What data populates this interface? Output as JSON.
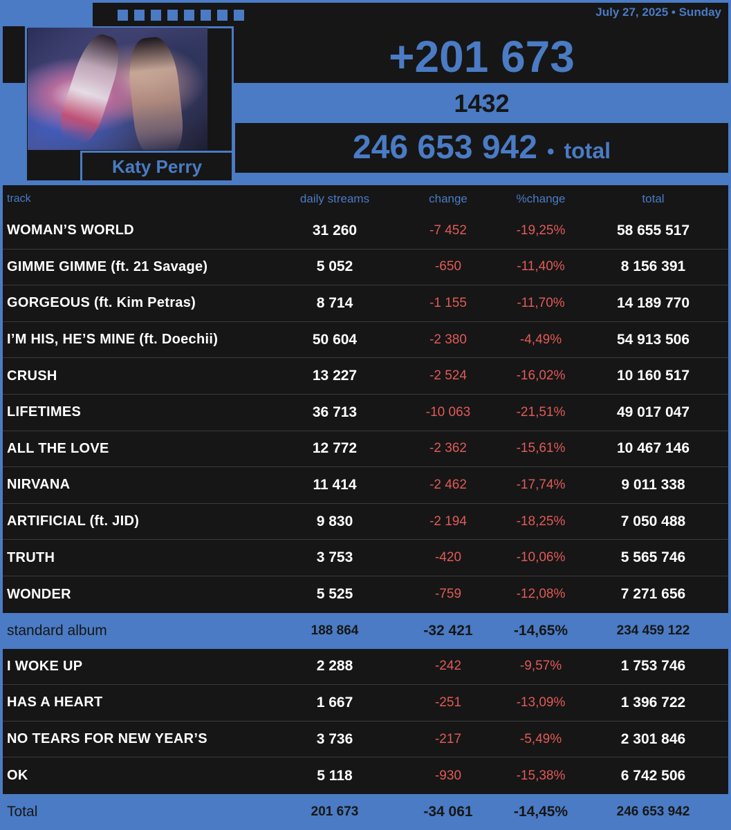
{
  "header": {
    "date": "July 27, 2025 • Sunday",
    "daily_gain": "+201 673",
    "secondary_number": "1432",
    "total_value": "246 653 942",
    "total_separator": "•",
    "total_label": "total",
    "artist": "Katy Perry",
    "cover_image": "album-cover",
    "accent_color": "#4a7bc4",
    "negative_color": "#e05a58"
  },
  "table": {
    "columns": {
      "track": "track",
      "daily": "daily streams",
      "change": "change",
      "pct": "%change",
      "total": "total"
    },
    "standard_tracks": [
      {
        "track": "WOMAN’S WORLD",
        "daily": "31 260",
        "change": "-7 452",
        "pct": "-19,25%",
        "total": "58 655 517"
      },
      {
        "track": "GIMME GIMME (ft. 21 Savage)",
        "daily": "5 052",
        "change": "-650",
        "pct": "-11,40%",
        "total": "8 156 391"
      },
      {
        "track": "GORGEOUS (ft. Kim Petras)",
        "daily": "8 714",
        "change": "-1 155",
        "pct": "-11,70%",
        "total": "14 189 770"
      },
      {
        "track": "I’M HIS, HE’S MINE (ft. Doechii)",
        "daily": "50 604",
        "change": "-2 380",
        "pct": "-4,49%",
        "total": "54 913 506"
      },
      {
        "track": "CRUSH",
        "daily": "13 227",
        "change": "-2 524",
        "pct": "-16,02%",
        "total": "10 160 517"
      },
      {
        "track": "LIFETIMES",
        "daily": "36 713",
        "change": "-10 063",
        "pct": "-21,51%",
        "total": "49 017 047"
      },
      {
        "track": "ALL THE LOVE",
        "daily": "12 772",
        "change": "-2 362",
        "pct": "-15,61%",
        "total": "10 467 146"
      },
      {
        "track": "NIRVANA",
        "daily": "11 414",
        "change": "-2 462",
        "pct": "-17,74%",
        "total": "9 011 338"
      },
      {
        "track": "ARTIFICIAL (ft. JID)",
        "daily": "9 830",
        "change": "-2 194",
        "pct": "-18,25%",
        "total": "7 050 488"
      },
      {
        "track": "TRUTH",
        "daily": "3 753",
        "change": "-420",
        "pct": "-10,06%",
        "total": "5 565 746"
      },
      {
        "track": "WONDER",
        "daily": "5 525",
        "change": "-759",
        "pct": "-12,08%",
        "total": "7 271 656"
      }
    ],
    "standard_album": {
      "track": "standard album",
      "daily": "188 864",
      "change": "-32 421",
      "pct": "-14,65%",
      "total": "234 459 122"
    },
    "extra_tracks": [
      {
        "track": "I WOKE UP",
        "daily": "2 288",
        "change": "-242",
        "pct": "-9,57%",
        "total": "1 753 746"
      },
      {
        "track": "HAS A HEART",
        "daily": "1 667",
        "change": "-251",
        "pct": "-13,09%",
        "total": "1 396 722"
      },
      {
        "track": "NO TEARS FOR NEW YEAR’S",
        "daily": "3 736",
        "change": "-217",
        "pct": "-5,49%",
        "total": "2 301 846"
      },
      {
        "track": "OK",
        "daily": "5 118",
        "change": "-930",
        "pct": "-15,38%",
        "total": "6 742 506"
      }
    ],
    "grand_total": {
      "track": "Total",
      "daily": "201 673",
      "change": "-34 061",
      "pct": "-14,45%",
      "total": "246 653 942"
    }
  }
}
